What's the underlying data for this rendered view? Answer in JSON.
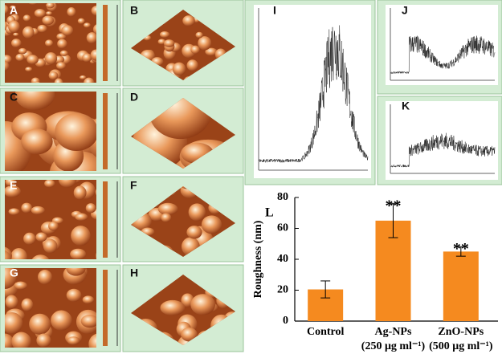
{
  "panels": {
    "labels": [
      "A",
      "B",
      "C",
      "D",
      "E",
      "F",
      "G",
      "H",
      "I",
      "J",
      "K"
    ]
  },
  "chart_data": {
    "type": "bar",
    "label": "L",
    "ylabel": "Roughness (nm)",
    "categories": [
      "Control",
      "Ag-NPs\n(250 μg ml⁻¹)",
      "ZnO-NPs\n(500 μg ml⁻¹)"
    ],
    "values": [
      20.5,
      65,
      45
    ],
    "errors": [
      5.5,
      11,
      3
    ],
    "annotations": [
      null,
      "**",
      "**"
    ],
    "color": "#f58a1f",
    "ylim": [
      0,
      80
    ],
    "yticks": [
      0,
      20,
      40,
      60,
      80
    ]
  }
}
